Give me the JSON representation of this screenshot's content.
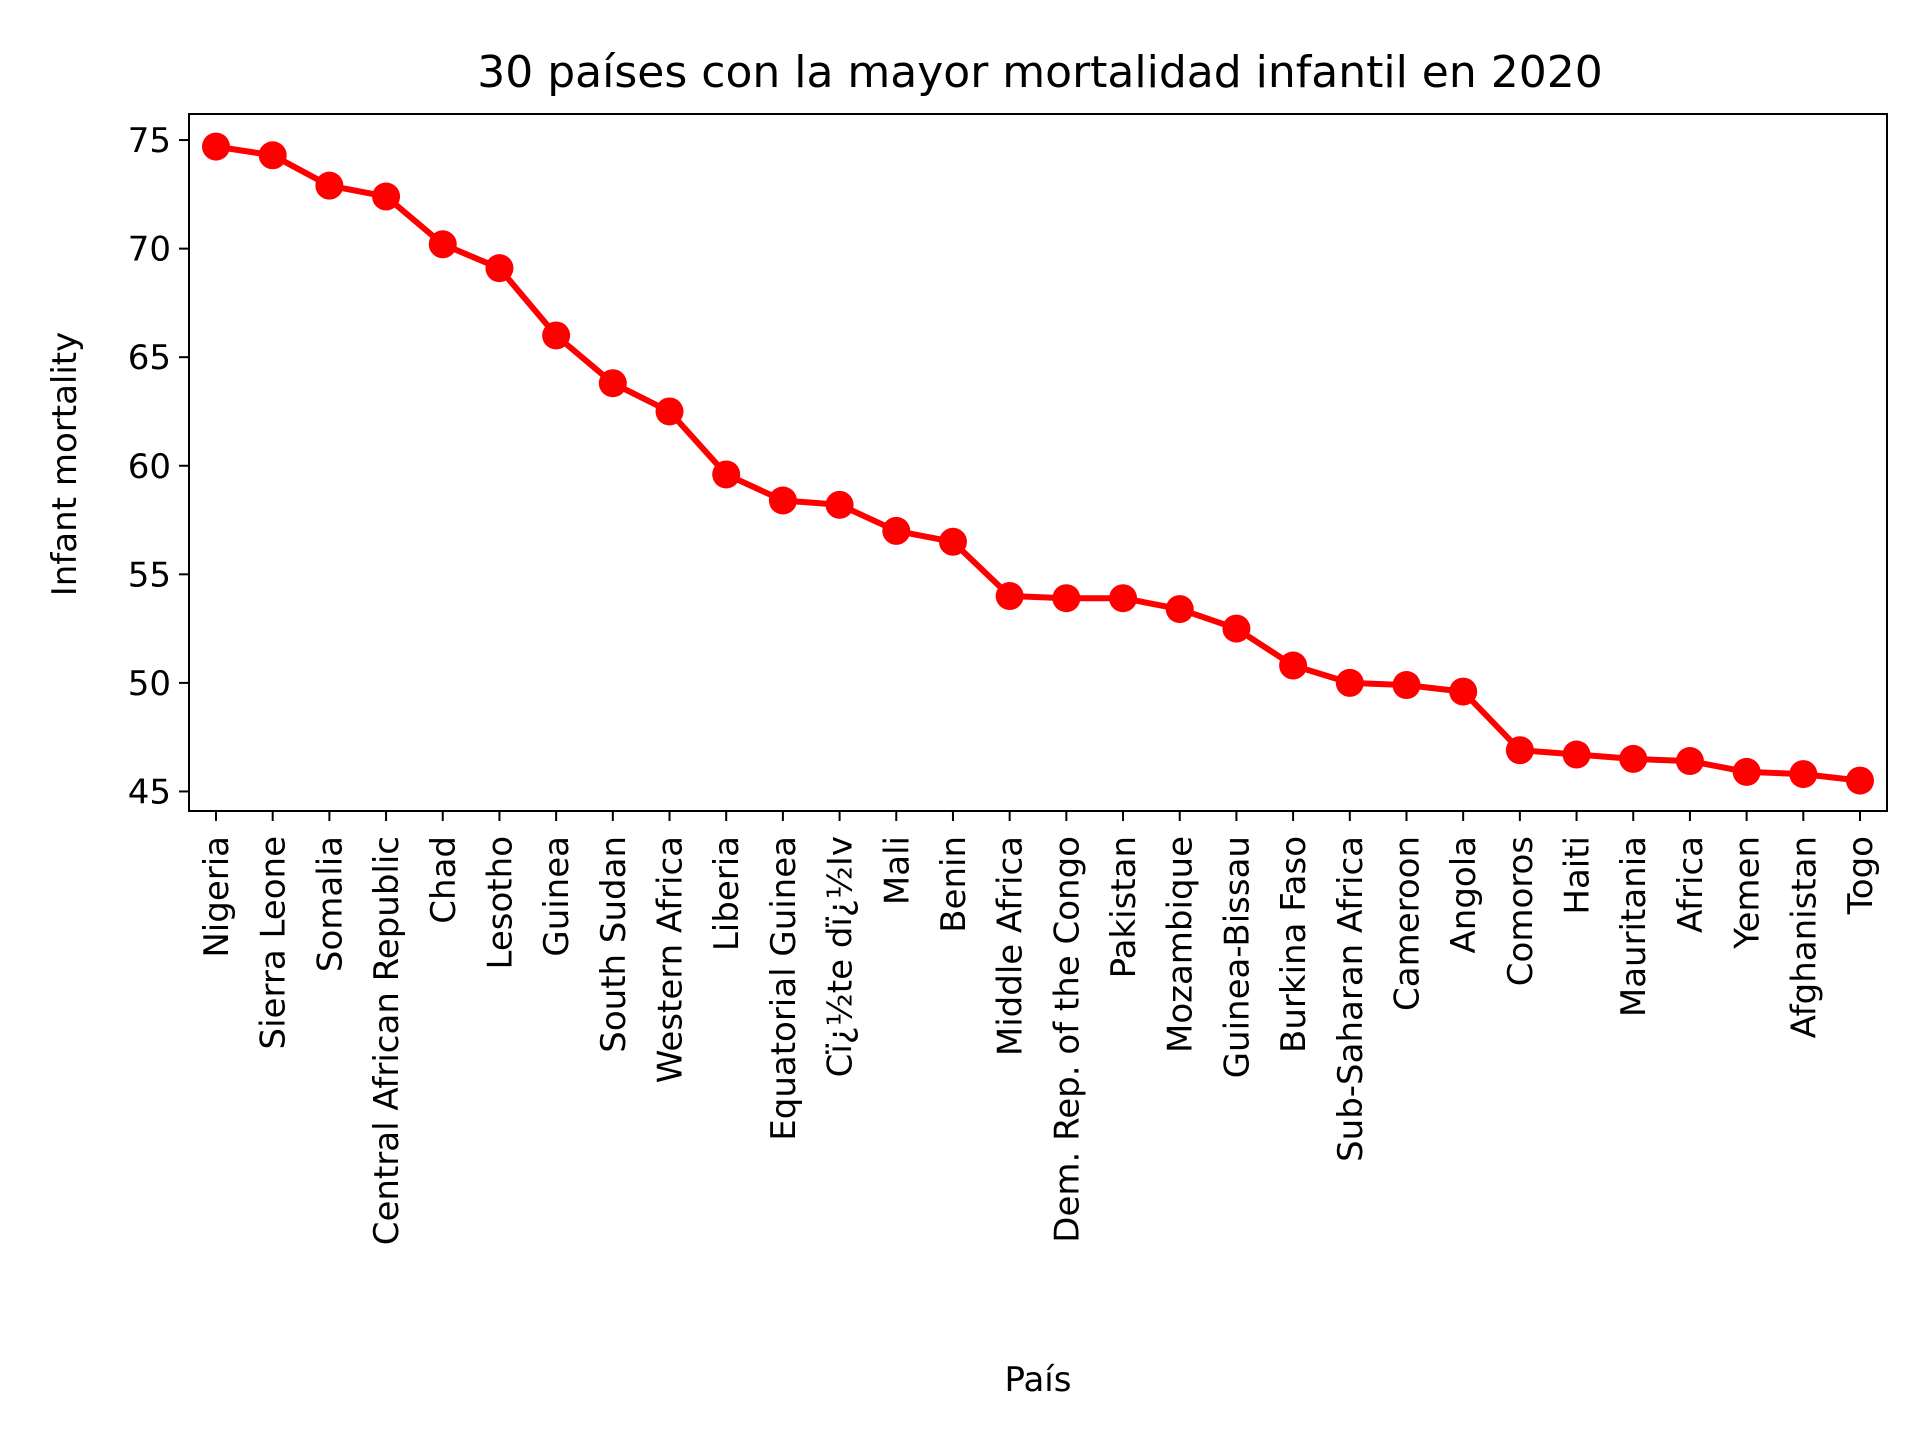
{
  "chart_data": {
    "type": "line",
    "title": "30 países con la mayor mortalidad infantil en 2020",
    "xlabel": "País",
    "ylabel": "Infant mortality",
    "categories": [
      "Nigeria",
      "Sierra Leone",
      "Somalia",
      "Central African Republic",
      "Chad",
      "Lesotho",
      "Guinea",
      "South Sudan",
      "Western Africa",
      "Liberia",
      "Equatorial Guinea",
      "Cï¿½te dï¿½Iv",
      "Mali",
      "Benin",
      "Middle Africa",
      "Dem. Rep. of the Congo",
      "Pakistan",
      "Mozambique",
      "Guinea-Bissau",
      "Burkina Faso",
      "Sub-Saharan Africa",
      "Cameroon",
      "Angola",
      "Comoros",
      "Haiti",
      "Mauritania",
      "Africa",
      "Yemen",
      "Afghanistan",
      "Togo"
    ],
    "series": [
      {
        "values": [
          74.7,
          74.3,
          72.9,
          72.4,
          70.2,
          69.1,
          66.0,
          63.8,
          62.5,
          59.6,
          58.4,
          58.2,
          57.0,
          56.5,
          54.0,
          53.9,
          53.9,
          53.4,
          52.5,
          50.8,
          50.0,
          49.9,
          49.6,
          46.9,
          46.7,
          46.5,
          46.4,
          45.9,
          45.8,
          45.5
        ]
      }
    ],
    "yticks": [
      45,
      50,
      55,
      60,
      65,
      70,
      75
    ],
    "ylim": [
      44.1,
      76.2
    ],
    "grid": false,
    "legend": "none",
    "line_color": "#ff0000",
    "marker": "circle"
  }
}
